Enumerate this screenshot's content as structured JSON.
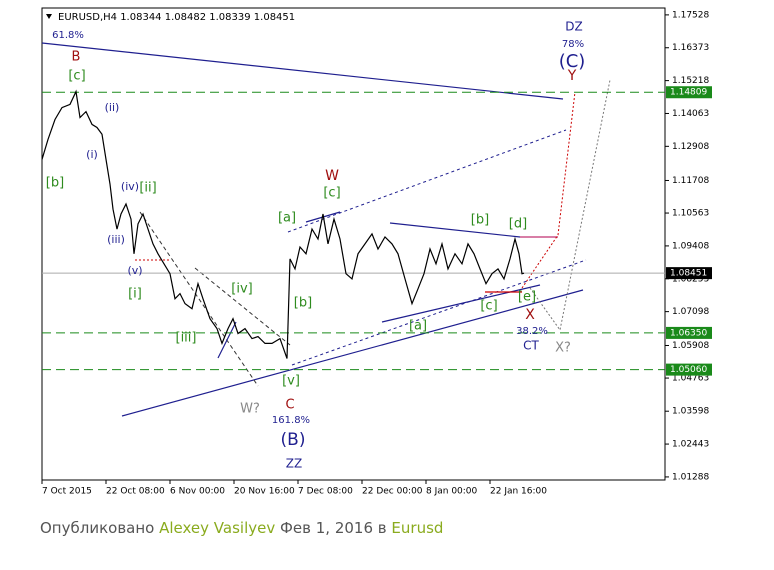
{
  "chart_data": {
    "type": "line",
    "title": "EURUSD,H4 1.08344 1.08482 1.08339 1.08451",
    "color": "#000000",
    "x": [
      0,
      1.5,
      3.25,
      5,
      7,
      8.5,
      9.5,
      11,
      12.5,
      13.75,
      15,
      16,
      17,
      17.75,
      18.75,
      19.75,
      21,
      22.25,
      23,
      24,
      25.25,
      26.5,
      27.75,
      29,
      30.5,
      32,
      33.25,
      34.5,
      35.75,
      37.5,
      39,
      40.25,
      42,
      43.75,
      45,
      46.5,
      47.75,
      49,
      50.75,
      52.5,
      54,
      55.75,
      57.5,
      59.5,
      61.25,
      62,
      63.25,
      64.5,
      66,
      67.5,
      69,
      70.25,
      71.5,
      73,
      74.5,
      76,
      77.5,
      79,
      80.75,
      82.5,
      84,
      85.75,
      87.5,
      89,
      90.75,
      92.5,
      94,
      95.5,
      97,
      98.5,
      100,
      101.5,
      103.25,
      105,
      106.5,
      108,
      109.5,
      111,
      112.5,
      114,
      115.5,
      117,
      118.25,
      119.25,
      120,
      120.5
    ],
    "values": [
      1.1245,
      1.1315,
      1.1385,
      1.1427,
      1.1438,
      1.1483,
      1.1392,
      1.1413,
      1.1368,
      1.1357,
      1.1333,
      1.1245,
      1.1158,
      1.107,
      1.1,
      1.1053,
      1.1088,
      1.1035,
      1.0913,
      1.1018,
      1.1053,
      1.1,
      1.0948,
      1.0913,
      1.0878,
      1.0843,
      1.0755,
      1.0773,
      1.0738,
      1.072,
      1.0808,
      1.0755,
      1.0685,
      1.065,
      1.0598,
      1.065,
      1.0685,
      1.0633,
      1.065,
      1.0615,
      1.0622,
      1.0598,
      1.0598,
      1.0615,
      1.0545,
      1.0895,
      1.086,
      1.0937,
      1.0913,
      1.1,
      1.0965,
      1.1053,
      1.0948,
      1.1035,
      1.0965,
      1.0843,
      1.0825,
      1.0913,
      1.0948,
      1.0983,
      1.093,
      1.0972,
      1.0948,
      1.0913,
      1.0825,
      1.0738,
      1.079,
      1.0843,
      1.093,
      1.0878,
      1.0948,
      1.086,
      1.0913,
      1.0878,
      1.0948,
      1.0913,
      1.086,
      1.0808,
      1.0843,
      1.086,
      1.0825,
      1.0895,
      1.0965,
      1.0913,
      1.0843,
      1.0845
    ],
    "xlim": [
      0,
      155.75
    ],
    "ylim": [
      1.0118,
      1.1777
    ],
    "xticks": [
      {
        "value": 0,
        "label": "7 Oct 2015"
      },
      {
        "value": 16,
        "label": "22 Oct 08:00"
      },
      {
        "value": 32,
        "label": "6 Nov 00:00"
      },
      {
        "value": 48,
        "label": "20 Nov 16:00"
      },
      {
        "value": 64,
        "label": "7 Dec 08:00"
      },
      {
        "value": 80,
        "label": "22 Dec 00:00"
      },
      {
        "value": 96,
        "label": "8 Jan 00:00"
      },
      {
        "value": 112,
        "label": "22 Jan 16:00"
      }
    ],
    "yticks": [
      1.17528,
      1.16373,
      1.15218,
      1.14063,
      1.12908,
      1.11708,
      1.10563,
      1.09408,
      1.08253,
      1.07098,
      1.05908,
      1.04763,
      1.03598,
      1.02443,
      1.01288
    ],
    "levels": [
      1.14809,
      {
        "value": 1.0635,
        "label": "1.06350"
      },
      {
        "value": 1.0506,
        "label": "1.05060"
      }
    ],
    "level_color": "#1a8a1a",
    "last": 1.08451,
    "annotations": [
      "61.8%",
      "B",
      "[c]",
      "(ii)",
      "(i)",
      "[b]",
      "(iv)",
      "[ii]",
      "(iii)",
      "(v)",
      "[i]",
      "[iii]",
      "[iv]",
      "W?",
      "[v]",
      "C",
      "161.8%",
      "(B)",
      "ZZ",
      "W",
      "[c]",
      "[a]",
      "[b]",
      "[b]",
      "[d]",
      "[a]",
      "[c]",
      "[e]",
      "X",
      "38.2%",
      "CT",
      "X?",
      "DZ",
      "78%",
      "(C)",
      "Y"
    ]
  },
  "footer": {
    "prefix": "Опубликовано",
    "author": "Alexey Vasilyev",
    "date": "Фев 1, 2016 в",
    "symbol": "Eurusd"
  }
}
